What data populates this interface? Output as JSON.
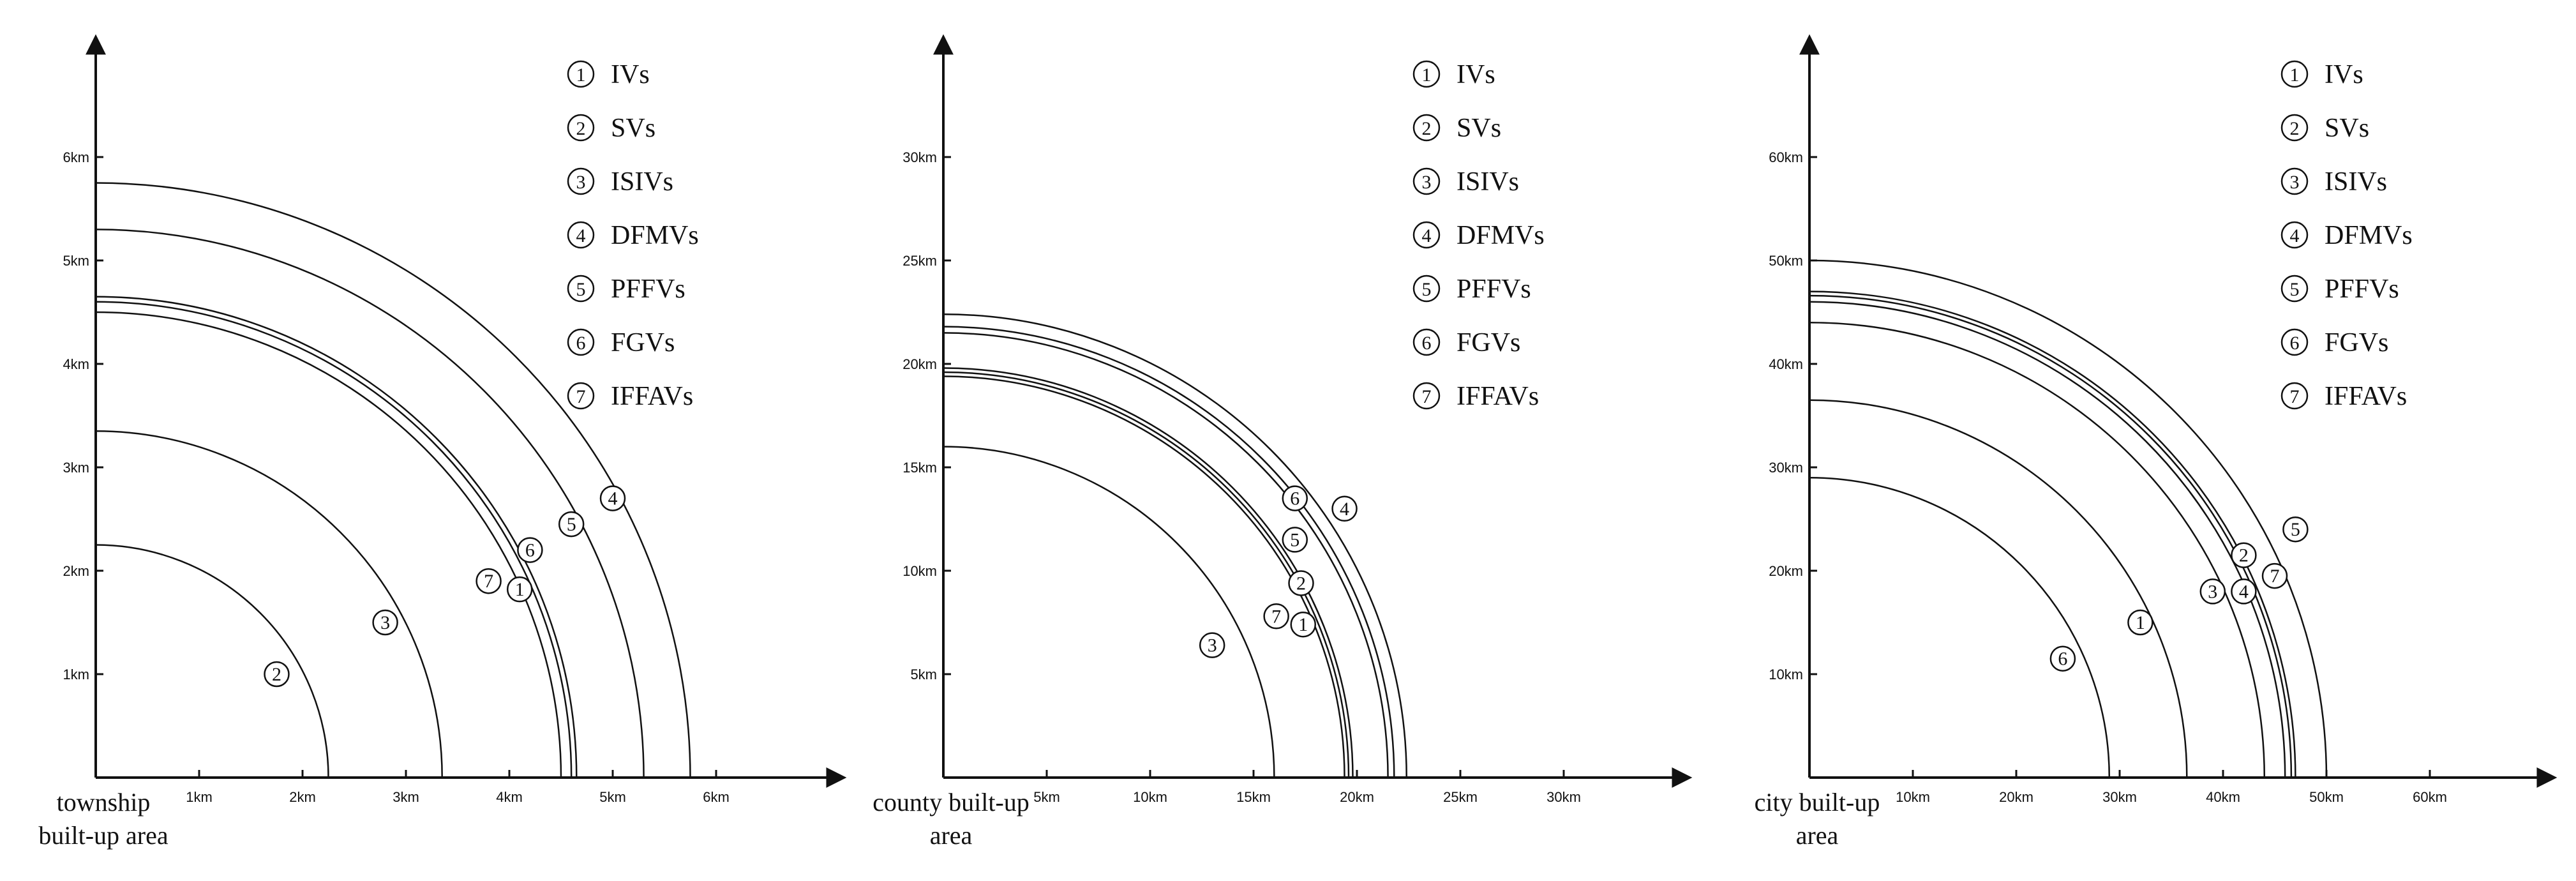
{
  "panels": [
    {
      "corner_label": [
        "township",
        "built-up area"
      ],
      "unit": "km",
      "x_ticks": [
        1,
        2,
        3,
        4,
        5,
        6
      ],
      "y_ticks": [
        1,
        2,
        3,
        4,
        5,
        6
      ],
      "legend": [
        "IVs",
        "SVs",
        "ISIVs",
        "DFMVs",
        "PFFVs",
        "FGVs",
        "IFFAVs"
      ],
      "arcs": [
        2.25,
        3.35,
        4.5,
        4.6,
        4.65,
        5.3,
        5.75
      ],
      "markers": [
        {
          "label": "②",
          "x": 1.75,
          "y": 1.0
        },
        {
          "label": "③",
          "x": 2.8,
          "y": 1.5
        },
        {
          "label": "⑦",
          "x": 3.8,
          "y": 1.9
        },
        {
          "label": "①",
          "x": 4.1,
          "y": 1.82
        },
        {
          "label": "⑥",
          "x": 4.2,
          "y": 2.2
        },
        {
          "label": "⑤",
          "x": 4.6,
          "y": 2.45
        },
        {
          "label": "④",
          "x": 5.0,
          "y": 2.7
        }
      ]
    },
    {
      "corner_label": [
        "county built-up",
        "area"
      ],
      "unit": "km",
      "x_ticks": [
        5,
        10,
        15,
        20,
        25,
        30
      ],
      "y_ticks": [
        5,
        10,
        15,
        20,
        25,
        30
      ],
      "legend": [
        "IVs",
        "SVs",
        "ISIVs",
        "DFMVs",
        "PFFVs",
        "FGVs",
        "IFFAVs"
      ],
      "arcs": [
        16.0,
        19.4,
        19.6,
        19.8,
        21.5,
        21.8,
        22.4
      ],
      "markers": [
        {
          "label": "③",
          "x": 13.0,
          "y": 6.4
        },
        {
          "label": "⑦",
          "x": 16.1,
          "y": 7.8
        },
        {
          "label": "①",
          "x": 17.4,
          "y": 7.4
        },
        {
          "label": "②",
          "x": 17.3,
          "y": 9.4
        },
        {
          "label": "⑤",
          "x": 17.0,
          "y": 11.5
        },
        {
          "label": "⑥",
          "x": 17.0,
          "y": 13.5
        },
        {
          "label": "④",
          "x": 19.4,
          "y": 13.0
        }
      ]
    },
    {
      "corner_label": [
        "city built-up",
        "area"
      ],
      "unit": "km",
      "x_ticks": [
        10,
        20,
        30,
        40,
        50,
        60
      ],
      "y_ticks": [
        10,
        20,
        30,
        40,
        50,
        60
      ],
      "legend": [
        "IVs",
        "SVs",
        "ISIVs",
        "DFMVs",
        "PFFVs",
        "FGVs",
        "IFFAVs"
      ],
      "arcs": [
        29.0,
        36.5,
        44.0,
        46.0,
        46.6,
        47.0,
        50.0
      ],
      "markers": [
        {
          "label": "⑥",
          "x": 24.5,
          "y": 11.5
        },
        {
          "label": "①",
          "x": 32.0,
          "y": 15.0
        },
        {
          "label": "③",
          "x": 39.0,
          "y": 18.0
        },
        {
          "label": "④",
          "x": 42.0,
          "y": 18.0
        },
        {
          "label": "②",
          "x": 42.0,
          "y": 21.5
        },
        {
          "label": "⑦",
          "x": 45.0,
          "y": 19.5
        },
        {
          "label": "⑤",
          "x": 47.0,
          "y": 24.0
        }
      ]
    }
  ],
  "legend_markers": [
    "①",
    "②",
    "③",
    "④",
    "⑤",
    "⑥",
    "⑦"
  ],
  "colors": {
    "stroke": "#111111",
    "background": "#ffffff"
  }
}
